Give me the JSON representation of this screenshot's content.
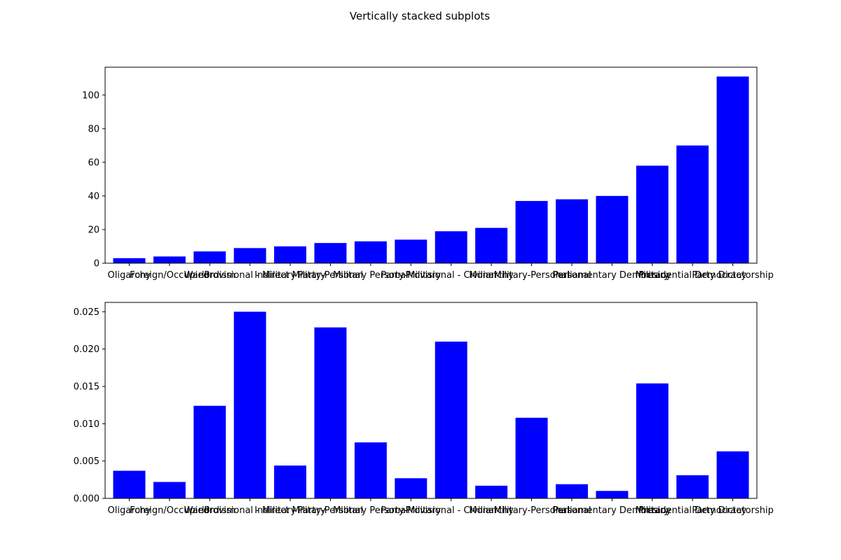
{
  "figure": {
    "title": "Vertically stacked subplots",
    "bar_color": "#0000ff"
  },
  "chart_data": [
    {
      "type": "bar",
      "title": "",
      "xlabel": "",
      "ylabel": "",
      "categories": [
        "Oligarchy",
        "Foreign/Occupied",
        "Warlordism",
        "Provisional - Military",
        "Indirect Military",
        "Party-Personal",
        "Military Personal",
        "Party-Military",
        "Provisional - Civilian",
        "Monarchy",
        "Military-Personal",
        "Personal",
        "Parliamentary Democracy",
        "Military",
        "Presidential Democracy",
        "Party Dictatorship"
      ],
      "values": [
        3,
        4,
        7,
        9,
        10,
        12,
        13,
        14,
        19,
        21,
        37,
        38,
        40,
        58,
        70,
        111
      ],
      "ylim": [
        0,
        116.55
      ],
      "yticks": [
        0,
        20,
        40,
        60,
        80,
        100
      ],
      "ytick_labels": [
        "0",
        "20",
        "40",
        "60",
        "80",
        "100"
      ],
      "grid": false
    },
    {
      "type": "bar",
      "title": "",
      "xlabel": "",
      "ylabel": "",
      "categories": [
        "Oligarchy",
        "Foreign/Occupied",
        "Warlordism",
        "Provisional - Military",
        "Indirect Military",
        "Party-Personal",
        "Military Personal",
        "Party-Military",
        "Provisional - Civilian",
        "Monarchy",
        "Military-Personal",
        "Personal",
        "Parliamentary Democracy",
        "Military",
        "Presidential Democracy",
        "Party Dictatorship"
      ],
      "values": [
        0.0037,
        0.0022,
        0.0124,
        0.025,
        0.0044,
        0.0229,
        0.0075,
        0.0027,
        0.021,
        0.0017,
        0.0108,
        0.0019,
        0.001,
        0.0154,
        0.0031,
        0.0063
      ],
      "ylim": [
        0,
        0.02625
      ],
      "yticks": [
        0,
        0.005,
        0.01,
        0.015,
        0.02,
        0.025
      ],
      "ytick_labels": [
        "0.000",
        "0.005",
        "0.010",
        "0.015",
        "0.020",
        "0.025"
      ],
      "grid": false
    }
  ]
}
